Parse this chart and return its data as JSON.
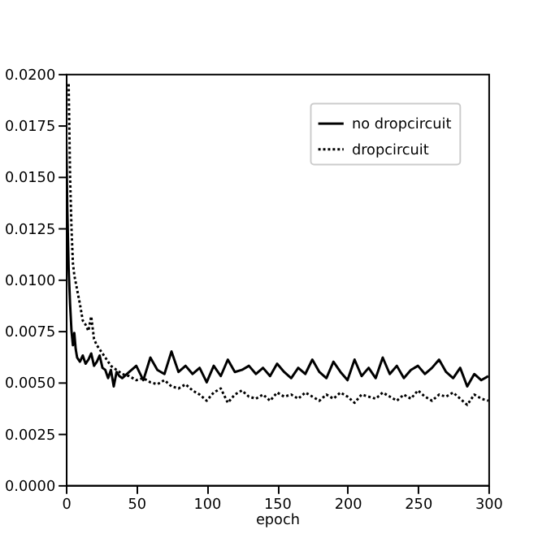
{
  "chart_data": {
    "type": "line",
    "xlabel": "epoch",
    "xlim": [
      0,
      300
    ],
    "xticks": [
      0,
      50,
      100,
      150,
      200,
      250,
      300
    ],
    "ylim": [
      0,
      0.02
    ],
    "yticks": [
      {
        "value": 0,
        "label": "0.0000"
      },
      {
        "value": 0.0025,
        "label": "0.0025"
      },
      {
        "value": 0.005,
        "label": "0.0050"
      },
      {
        "value": 0.0075,
        "label": "0.0075"
      },
      {
        "value": 0.01,
        "label": "0.0100"
      },
      {
        "value": 0.0125,
        "label": "0.0125"
      },
      {
        "value": 0.015,
        "label": "0.0150"
      },
      {
        "value": 0.0175,
        "label": "0.0175"
      },
      {
        "value": 0.02,
        "label": "0.0200"
      }
    ],
    "grid": false,
    "legend": "top right",
    "series": [
      {
        "name": "no dropcircuit",
        "color": "#000000",
        "line_style": "solid",
        "x": [
          0,
          1,
          2,
          3,
          4,
          5,
          6,
          7,
          8,
          10,
          12,
          14,
          16,
          18,
          20,
          22,
          24,
          26,
          28,
          30,
          32,
          34,
          36,
          38,
          40,
          45,
          50,
          55,
          60,
          65,
          70,
          75,
          80,
          85,
          90,
          95,
          100,
          105,
          110,
          115,
          120,
          125,
          130,
          135,
          140,
          145,
          150,
          155,
          160,
          165,
          170,
          175,
          180,
          185,
          190,
          195,
          200,
          205,
          210,
          215,
          220,
          225,
          230,
          235,
          240,
          245,
          250,
          255,
          260,
          265,
          270,
          275,
          280,
          285,
          290,
          295,
          300
        ],
        "values": [
          0.0182,
          0.0135,
          0.0105,
          0.0088,
          0.0075,
          0.0068,
          0.0074,
          0.0066,
          0.0062,
          0.006,
          0.0063,
          0.0059,
          0.0061,
          0.0064,
          0.0058,
          0.006,
          0.0063,
          0.0057,
          0.0056,
          0.0052,
          0.0056,
          0.0048,
          0.0055,
          0.0053,
          0.0052,
          0.0055,
          0.0058,
          0.0051,
          0.0062,
          0.0056,
          0.0054,
          0.0065,
          0.0055,
          0.0058,
          0.0054,
          0.0057,
          0.005,
          0.0058,
          0.0053,
          0.0061,
          0.0055,
          0.0056,
          0.0058,
          0.0054,
          0.0057,
          0.0053,
          0.0059,
          0.0055,
          0.0052,
          0.0057,
          0.0054,
          0.0061,
          0.0055,
          0.0052,
          0.006,
          0.0055,
          0.0051,
          0.0061,
          0.0053,
          0.0057,
          0.0052,
          0.0062,
          0.0054,
          0.0058,
          0.0052,
          0.0056,
          0.0058,
          0.0054,
          0.0057,
          0.0061,
          0.0055,
          0.0052,
          0.0057,
          0.0048,
          0.0054,
          0.0051,
          0.0053
        ]
      },
      {
        "name": "dropcircuit",
        "color": "#000000",
        "line_style": "dotted",
        "x": [
          2,
          3,
          4,
          5,
          6,
          8,
          10,
          12,
          14,
          16,
          18,
          20,
          22,
          24,
          26,
          28,
          30,
          32,
          34,
          36,
          38,
          40,
          45,
          50,
          55,
          60,
          65,
          70,
          75,
          80,
          85,
          90,
          95,
          100,
          105,
          110,
          115,
          120,
          125,
          130,
          135,
          140,
          145,
          150,
          155,
          160,
          165,
          170,
          175,
          180,
          185,
          190,
          195,
          200,
          205,
          210,
          215,
          220,
          225,
          230,
          235,
          240,
          245,
          250,
          255,
          260,
          265,
          270,
          275,
          280,
          285,
          290,
          295,
          300
        ],
        "values": [
          0.0195,
          0.015,
          0.0125,
          0.0108,
          0.0102,
          0.0095,
          0.0088,
          0.008,
          0.0078,
          0.0075,
          0.0082,
          0.0071,
          0.0068,
          0.0066,
          0.0064,
          0.0062,
          0.006,
          0.0058,
          0.0057,
          0.0056,
          0.0055,
          0.0054,
          0.0053,
          0.0051,
          0.0052,
          0.005,
          0.0049,
          0.0051,
          0.0048,
          0.0047,
          0.0049,
          0.0046,
          0.0044,
          0.0041,
          0.0045,
          0.0047,
          0.004,
          0.0044,
          0.0046,
          0.0043,
          0.0042,
          0.0044,
          0.0041,
          0.0045,
          0.0043,
          0.0044,
          0.0042,
          0.0045,
          0.0043,
          0.0041,
          0.0044,
          0.0042,
          0.0045,
          0.0043,
          0.004,
          0.0044,
          0.0043,
          0.0042,
          0.0045,
          0.0043,
          0.0041,
          0.0044,
          0.0042,
          0.0046,
          0.0043,
          0.0041,
          0.0044,
          0.0043,
          0.0045,
          0.0042,
          0.0039,
          0.0044,
          0.0042,
          0.0041
        ]
      }
    ]
  }
}
